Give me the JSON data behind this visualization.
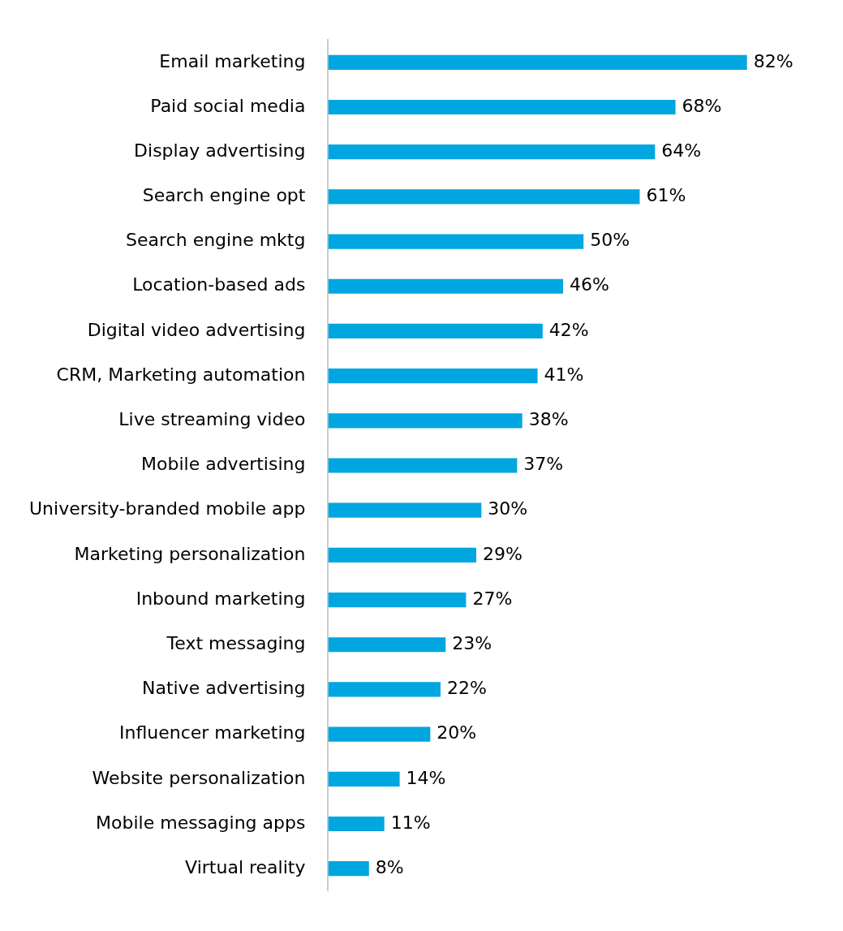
{
  "chart_data": {
    "type": "bar",
    "orientation": "horizontal",
    "categories": [
      "Email marketing",
      "Paid social media",
      "Display advertising",
      "Search engine opt",
      "Search engine mktg",
      "Location-based ads",
      "Digital video advertising",
      "CRM, Marketing automation",
      "Live streaming video",
      "Mobile advertising",
      "University-branded mobile app",
      "Marketing personalization",
      "Inbound marketing",
      "Text messaging",
      "Native advertising",
      "Influencer marketing",
      "Website personalization",
      "Mobile messaging apps",
      "Virtual reality"
    ],
    "values": [
      82,
      68,
      64,
      61,
      50,
      46,
      42,
      41,
      38,
      37,
      30,
      29,
      27,
      23,
      22,
      20,
      14,
      11,
      8
    ],
    "value_labels": [
      "82%",
      "68%",
      "64%",
      "61%",
      "50%",
      "46%",
      "42%",
      "41%",
      "38%",
      "37%",
      "30%",
      "29%",
      "27%",
      "23%",
      "22%",
      "20%",
      "14%",
      "11%",
      "8%"
    ],
    "color": "#00a6e0",
    "grid": false,
    "legend": false,
    "tick_labels": "y"
  }
}
